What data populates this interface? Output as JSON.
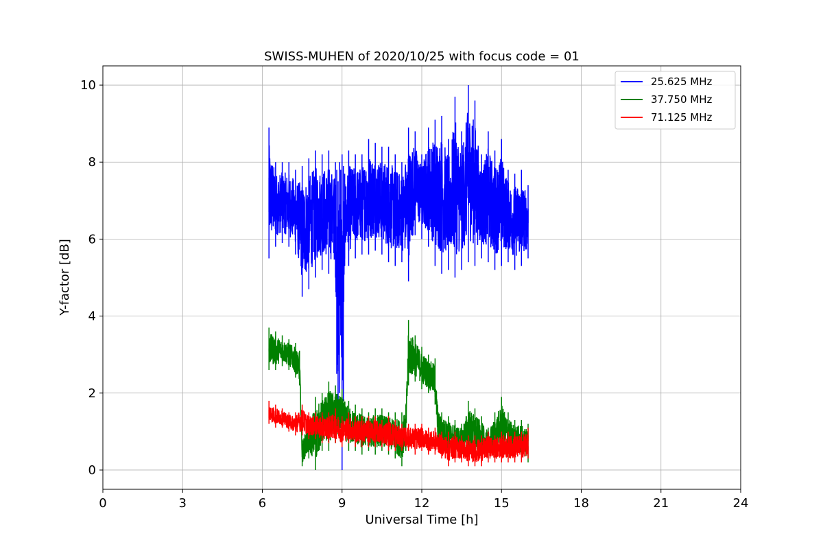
{
  "chart_data": {
    "type": "line",
    "title": "SWISS-MUHEN of 2020/10/25 with focus code = 01",
    "xlabel": "Universal Time [h]",
    "ylabel": "Y-factor [dB]",
    "xlim": [
      0,
      24
    ],
    "ylim": [
      -0.5,
      10.5
    ],
    "xticks": [
      "0",
      "3",
      "6",
      "9",
      "12",
      "15",
      "18",
      "21",
      "24"
    ],
    "yticks": [
      "0",
      "2",
      "4",
      "6",
      "8",
      "10"
    ],
    "grid": true,
    "legend_position": "top-right",
    "series": [
      {
        "name": "25.625 MHz",
        "color": "#0000ff",
        "x": [
          6.25,
          6.5,
          6.75,
          7.0,
          7.25,
          7.5,
          7.75,
          8.0,
          8.25,
          8.5,
          8.75,
          8.8,
          8.85,
          8.9,
          8.95,
          9.0,
          9.05,
          9.1,
          9.25,
          9.5,
          9.75,
          10.0,
          10.25,
          10.5,
          10.75,
          11.0,
          11.25,
          11.5,
          11.75,
          12.0,
          12.25,
          12.5,
          12.75,
          13.0,
          13.25,
          13.5,
          13.75,
          14.0,
          14.25,
          14.5,
          14.75,
          15.0,
          15.25,
          15.5,
          15.75,
          16.0
        ],
        "min": [
          5.5,
          5.8,
          5.9,
          5.8,
          5.6,
          4.5,
          4.7,
          5.0,
          5.2,
          5.1,
          5.0,
          2.5,
          1.5,
          2.0,
          3.5,
          0.0,
          1.8,
          5.3,
          5.3,
          5.5,
          5.6,
          5.6,
          5.7,
          5.6,
          5.4,
          5.3,
          5.4,
          4.9,
          6.1,
          6.0,
          5.8,
          5.3,
          5.1,
          5.2,
          5.0,
          5.2,
          5.4,
          5.3,
          5.5,
          5.4,
          5.2,
          5.3,
          5.4,
          5.2,
          5.3,
          5.5
        ],
        "max": [
          8.9,
          8.0,
          8.0,
          8.0,
          7.8,
          7.9,
          8.1,
          8.3,
          8.2,
          8.3,
          8.0,
          7.8,
          7.5,
          8.0,
          7.8,
          8.2,
          7.9,
          7.7,
          8.3,
          8.2,
          8.2,
          8.6,
          8.5,
          8.4,
          8.4,
          8.2,
          8.0,
          8.9,
          8.8,
          8.2,
          8.9,
          9.1,
          9.2,
          8.6,
          9.7,
          8.8,
          10.0,
          9.6,
          8.2,
          8.8,
          8.3,
          8.6,
          7.8,
          7.7,
          7.8,
          7.4
        ]
      },
      {
        "name": "37.750 MHz",
        "color": "#008000",
        "x": [
          6.25,
          6.5,
          6.75,
          7.0,
          7.25,
          7.4,
          7.5,
          7.75,
          8.0,
          8.25,
          8.5,
          8.75,
          9.0,
          9.25,
          9.5,
          9.75,
          10.0,
          10.25,
          10.5,
          10.75,
          11.0,
          11.25,
          11.4,
          11.5,
          11.75,
          12.0,
          12.25,
          12.5,
          12.6,
          12.75,
          13.0,
          13.25,
          13.5,
          13.75,
          14.0,
          14.25,
          14.5,
          14.75,
          15.0,
          15.25,
          15.5,
          15.75,
          16.0
        ],
        "min": [
          2.6,
          2.6,
          2.7,
          2.6,
          2.4,
          2.2,
          0.1,
          0.3,
          0.0,
          0.5,
          0.5,
          0.7,
          0.6,
          0.5,
          0.5,
          0.4,
          0.5,
          0.4,
          0.5,
          0.4,
          0.3,
          0.1,
          0.5,
          2.2,
          2.3,
          2.1,
          2.0,
          1.7,
          0.6,
          0.5,
          0.4,
          0.4,
          0.3,
          0.3,
          0.3,
          0.2,
          0.3,
          0.3,
          0.3,
          0.3,
          0.3,
          0.3,
          0.2
        ],
        "max": [
          3.7,
          3.6,
          3.5,
          3.4,
          3.3,
          3.1,
          0.8,
          1.4,
          1.9,
          2.0,
          2.3,
          2.2,
          2.1,
          1.8,
          1.7,
          1.6,
          1.5,
          1.6,
          1.6,
          1.5,
          1.5,
          1.5,
          1.7,
          3.9,
          3.5,
          3.2,
          3.0,
          2.9,
          1.7,
          1.5,
          1.4,
          1.3,
          1.2,
          1.8,
          1.6,
          1.4,
          1.1,
          1.5,
          1.9,
          1.5,
          1.3,
          1.3,
          1.2
        ]
      },
      {
        "name": "71.125 MHz",
        "color": "#ff0000",
        "x": [
          6.25,
          6.5,
          6.75,
          7.0,
          7.25,
          7.5,
          7.75,
          8.0,
          8.25,
          8.5,
          8.75,
          9.0,
          9.25,
          9.5,
          9.75,
          10.0,
          10.25,
          10.5,
          10.75,
          11.0,
          11.25,
          11.5,
          11.75,
          12.0,
          12.25,
          12.5,
          12.75,
          13.0,
          13.25,
          13.5,
          13.75,
          14.0,
          14.25,
          14.5,
          14.75,
          15.0,
          15.25,
          15.5,
          15.75,
          16.0
        ],
        "min": [
          1.2,
          1.1,
          1.1,
          1.0,
          0.9,
          0.9,
          0.8,
          0.8,
          0.7,
          0.7,
          0.7,
          0.6,
          0.7,
          0.6,
          0.6,
          0.6,
          0.6,
          0.6,
          0.5,
          0.5,
          0.5,
          0.5,
          0.4,
          0.5,
          0.4,
          0.4,
          0.3,
          0.1,
          0.2,
          0.2,
          0.1,
          0.1,
          0.1,
          0.2,
          0.2,
          0.2,
          0.2,
          0.2,
          0.2,
          0.3
        ],
        "max": [
          1.8,
          1.7,
          1.6,
          1.5,
          1.5,
          1.7,
          1.5,
          1.5,
          1.5,
          1.5,
          1.6,
          1.4,
          1.5,
          1.4,
          1.4,
          1.4,
          1.4,
          1.3,
          1.4,
          1.3,
          1.2,
          1.2,
          1.2,
          1.2,
          1.1,
          1.1,
          1.0,
          1.0,
          1.0,
          0.9,
          0.9,
          0.9,
          0.9,
          1.0,
          0.9,
          1.0,
          1.0,
          1.0,
          1.0,
          1.1
        ]
      }
    ]
  }
}
